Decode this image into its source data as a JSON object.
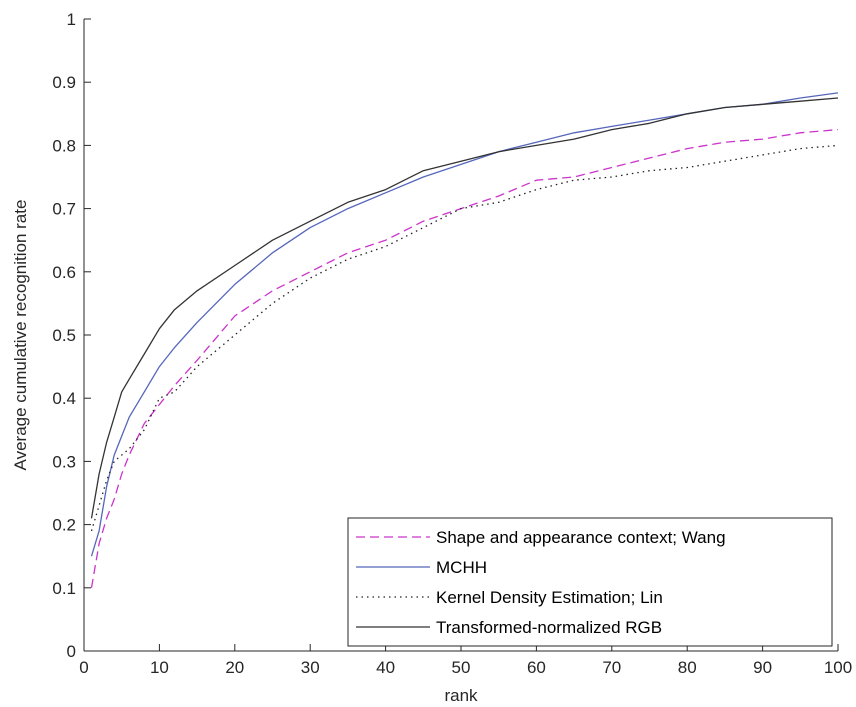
{
  "chart_data": {
    "type": "line",
    "title": "",
    "xlabel": "rank",
    "ylabel": "Average cumulative recognition rate",
    "xlim": [
      0,
      100
    ],
    "ylim": [
      0,
      1
    ],
    "xticks": [
      "0",
      "10",
      "20",
      "30",
      "40",
      "50",
      "60",
      "70",
      "80",
      "90",
      "100"
    ],
    "yticks": [
      "0",
      "0.1",
      "0.2",
      "0.3",
      "0.4",
      "0.5",
      "0.6",
      "0.7",
      "0.8",
      "0.9",
      "1"
    ],
    "grid": false,
    "legend_position": "bottom-right",
    "x": [
      1,
      2,
      3,
      4,
      5,
      6,
      8,
      10,
      12,
      15,
      20,
      25,
      30,
      35,
      40,
      45,
      50,
      55,
      60,
      65,
      70,
      75,
      80,
      85,
      90,
      95,
      100
    ],
    "series": [
      {
        "name": "Shape and appearance context; Wang",
        "color": "#cc33cc",
        "dash": "dashed",
        "values": [
          0.1,
          0.17,
          0.21,
          0.24,
          0.28,
          0.31,
          0.36,
          0.39,
          0.42,
          0.46,
          0.53,
          0.57,
          0.6,
          0.63,
          0.65,
          0.68,
          0.7,
          0.72,
          0.745,
          0.75,
          0.765,
          0.78,
          0.795,
          0.805,
          0.81,
          0.82,
          0.825
        ]
      },
      {
        "name": "MCHH",
        "color": "#5566bb",
        "dash": "solid",
        "values": [
          0.15,
          0.19,
          0.26,
          0.31,
          0.34,
          0.37,
          0.41,
          0.45,
          0.48,
          0.52,
          0.58,
          0.63,
          0.67,
          0.7,
          0.725,
          0.75,
          0.77,
          0.79,
          0.805,
          0.82,
          0.83,
          0.84,
          0.85,
          0.86,
          0.865,
          0.875,
          0.883
        ]
      },
      {
        "name": "Kernel Density Estimation; Lin",
        "color": "#222222",
        "dash": "dotted",
        "values": [
          0.19,
          0.23,
          0.27,
          0.3,
          0.31,
          0.32,
          0.35,
          0.4,
          0.41,
          0.45,
          0.5,
          0.55,
          0.59,
          0.62,
          0.64,
          0.67,
          0.7,
          0.71,
          0.73,
          0.745,
          0.75,
          0.76,
          0.765,
          0.775,
          0.785,
          0.795,
          0.8
        ]
      },
      {
        "name": "Transformed-normalized RGB",
        "color": "#333333",
        "dash": "solid",
        "values": [
          0.21,
          0.28,
          0.33,
          0.37,
          0.41,
          0.43,
          0.47,
          0.51,
          0.54,
          0.57,
          0.61,
          0.65,
          0.68,
          0.71,
          0.73,
          0.76,
          0.775,
          0.79,
          0.8,
          0.81,
          0.825,
          0.835,
          0.85,
          0.86,
          0.865,
          0.87,
          0.875
        ]
      }
    ]
  }
}
